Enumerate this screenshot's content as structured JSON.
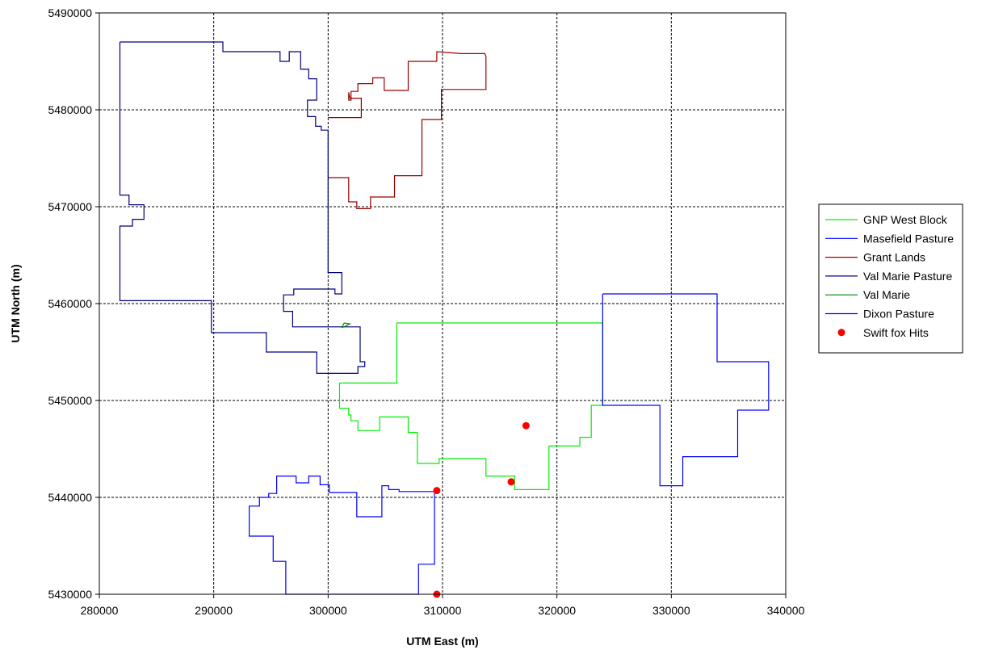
{
  "chart_data": {
    "type": "line",
    "xlabel": "UTM East (m)",
    "ylabel": "UTM North (m)",
    "xlim": [
      280000,
      340000
    ],
    "ylim": [
      5430000,
      5490000
    ],
    "xticks": [
      280000,
      290000,
      300000,
      310000,
      320000,
      330000,
      340000
    ],
    "yticks": [
      5430000,
      5440000,
      5450000,
      5460000,
      5470000,
      5480000,
      5490000
    ],
    "grid": true,
    "legend_position": "right",
    "series": [
      {
        "name": "GNP West Block",
        "kind": "line",
        "color": "#00ee00",
        "points": [
          [
            306000,
            5458000
          ],
          [
            324000,
            5458000
          ],
          [
            324000,
            5449500
          ],
          [
            323000,
            5449500
          ],
          [
            323000,
            5446200
          ],
          [
            322000,
            5446200
          ],
          [
            322000,
            5445300
          ],
          [
            319300,
            5445300
          ],
          [
            319300,
            5440800
          ],
          [
            316300,
            5440800
          ],
          [
            316300,
            5442200
          ],
          [
            313800,
            5442200
          ],
          [
            313800,
            5444000
          ],
          [
            309700,
            5444000
          ],
          [
            309700,
            5443500
          ],
          [
            307800,
            5443500
          ],
          [
            307800,
            5446700
          ],
          [
            307000,
            5446700
          ],
          [
            307000,
            5448300
          ],
          [
            304500,
            5448300
          ],
          [
            304500,
            5446900
          ],
          [
            302600,
            5446900
          ],
          [
            302600,
            5447900
          ],
          [
            302000,
            5447900
          ],
          [
            302000,
            5448500
          ],
          [
            301800,
            5448500
          ],
          [
            301800,
            5449200
          ],
          [
            301000,
            5449200
          ],
          [
            301000,
            5451800
          ],
          [
            306000,
            5451800
          ],
          [
            306000,
            5458000
          ]
        ]
      },
      {
        "name": "Masefield Pasture",
        "kind": "line",
        "color": "#0000ff",
        "points": [
          [
            324000,
            5461000
          ],
          [
            334000,
            5461000
          ],
          [
            334000,
            5454000
          ],
          [
            338500,
            5454000
          ],
          [
            338500,
            5449000
          ],
          [
            335800,
            5449000
          ],
          [
            335800,
            5444200
          ],
          [
            331000,
            5444200
          ],
          [
            331000,
            5441200
          ],
          [
            329000,
            5441200
          ],
          [
            329000,
            5449500
          ],
          [
            324000,
            5449500
          ],
          [
            324000,
            5461000
          ]
        ]
      },
      {
        "name": "Grant Lands",
        "kind": "line",
        "color": "#990000",
        "points": [
          [
            300000,
            5473000
          ],
          [
            301800,
            5473000
          ],
          [
            301800,
            5470500
          ],
          [
            302500,
            5470500
          ],
          [
            302500,
            5469800
          ],
          [
            303700,
            5469800
          ],
          [
            303700,
            5471000
          ],
          [
            305800,
            5471000
          ],
          [
            305800,
            5473200
          ],
          [
            308200,
            5473200
          ],
          [
            308200,
            5479000
          ],
          [
            309900,
            5479000
          ],
          [
            309900,
            5482100
          ],
          [
            313800,
            5482100
          ],
          [
            313800,
            5485500
          ],
          [
            313700,
            5485800
          ],
          [
            311600,
            5485800
          ],
          [
            309500,
            5486000
          ],
          [
            309500,
            5485000
          ],
          [
            307000,
            5485000
          ],
          [
            307000,
            5482000
          ],
          [
            304900,
            5482000
          ],
          [
            304900,
            5483300
          ],
          [
            303900,
            5483300
          ],
          [
            303900,
            5482700
          ],
          [
            302600,
            5482700
          ],
          [
            302600,
            5481900
          ],
          [
            302000,
            5481900
          ],
          [
            302000,
            5481000
          ],
          [
            301800,
            5481000
          ],
          [
            301800,
            5481800
          ],
          [
            301900,
            5481200
          ],
          [
            302900,
            5481200
          ],
          [
            302900,
            5479200
          ],
          [
            300000,
            5479200
          ]
        ]
      },
      {
        "name": "Val Marie Pasture",
        "kind": "line",
        "color": "#000080",
        "points": [
          [
            281800,
            5487000
          ],
          [
            290800,
            5487000
          ],
          [
            290800,
            5486000
          ],
          [
            295800,
            5486000
          ],
          [
            295800,
            5485000
          ],
          [
            296600,
            5485000
          ],
          [
            296600,
            5486000
          ],
          [
            297600,
            5486000
          ],
          [
            297600,
            5484200
          ],
          [
            298300,
            5484200
          ],
          [
            298300,
            5483200
          ],
          [
            299000,
            5483200
          ],
          [
            299000,
            5481000
          ],
          [
            298200,
            5481000
          ],
          [
            298200,
            5479300
          ],
          [
            298900,
            5479300
          ],
          [
            298900,
            5478300
          ],
          [
            299400,
            5478300
          ],
          [
            299400,
            5477900
          ],
          [
            300000,
            5477900
          ],
          [
            300000,
            5463200
          ],
          [
            301200,
            5463200
          ],
          [
            301200,
            5461000
          ],
          [
            300600,
            5461000
          ],
          [
            300600,
            5461500
          ],
          [
            297000,
            5461500
          ],
          [
            297000,
            5460900
          ],
          [
            296100,
            5460900
          ],
          [
            296100,
            5459200
          ],
          [
            296900,
            5459200
          ],
          [
            296900,
            5457600
          ],
          [
            302800,
            5457600
          ],
          [
            302800,
            5454000
          ],
          [
            303200,
            5454000
          ],
          [
            303200,
            5453500
          ],
          [
            302600,
            5453500
          ],
          [
            302600,
            5452800
          ],
          [
            299000,
            5452800
          ],
          [
            299000,
            5455000
          ],
          [
            294600,
            5455000
          ],
          [
            294600,
            5457000
          ],
          [
            289800,
            5457000
          ],
          [
            289800,
            5460300
          ],
          [
            281800,
            5460300
          ],
          [
            281800,
            5468000
          ],
          [
            282900,
            5468000
          ],
          [
            282900,
            5468700
          ],
          [
            283900,
            5468700
          ],
          [
            283900,
            5470200
          ],
          [
            282600,
            5470200
          ],
          [
            282600,
            5471200
          ],
          [
            281800,
            5471200
          ],
          [
            281800,
            5487000
          ]
        ]
      },
      {
        "name": "Val Marie",
        "kind": "line",
        "color": "#008800",
        "points": [
          [
            301200,
            5457500
          ],
          [
            301900,
            5457900
          ],
          [
            301400,
            5458000
          ],
          [
            301200,
            5457500
          ]
        ]
      },
      {
        "name": "Dixon Pasture",
        "kind": "line",
        "color": "#0000ff",
        "points": [
          [
            296300,
            5430000
          ],
          [
            307900,
            5430000
          ],
          [
            307900,
            5433100
          ],
          [
            309300,
            5433100
          ],
          [
            309300,
            5440600
          ],
          [
            306200,
            5440600
          ],
          [
            306200,
            5440800
          ],
          [
            305300,
            5440800
          ],
          [
            305300,
            5441200
          ],
          [
            304700,
            5441200
          ],
          [
            304700,
            5438000
          ],
          [
            302500,
            5438000
          ],
          [
            302500,
            5440500
          ],
          [
            300100,
            5440500
          ],
          [
            300100,
            5441300
          ],
          [
            299300,
            5441300
          ],
          [
            299300,
            5442200
          ],
          [
            298300,
            5442200
          ],
          [
            298300,
            5441500
          ],
          [
            297200,
            5441500
          ],
          [
            297200,
            5442200
          ],
          [
            295500,
            5442200
          ],
          [
            295500,
            5440400
          ],
          [
            294800,
            5440400
          ],
          [
            294800,
            5440000
          ],
          [
            294000,
            5440000
          ],
          [
            294000,
            5439100
          ],
          [
            293100,
            5439100
          ],
          [
            293100,
            5436000
          ],
          [
            295200,
            5436000
          ],
          [
            295200,
            5433400
          ],
          [
            296300,
            5433400
          ],
          [
            296300,
            5430000
          ]
        ]
      },
      {
        "name": "Swift fox Hits",
        "kind": "scatter",
        "color": "#ff0000",
        "points": [
          [
            309500,
            5440700
          ],
          [
            317300,
            5447400
          ],
          [
            316000,
            5441600
          ],
          [
            309500,
            5430000
          ]
        ]
      }
    ]
  }
}
